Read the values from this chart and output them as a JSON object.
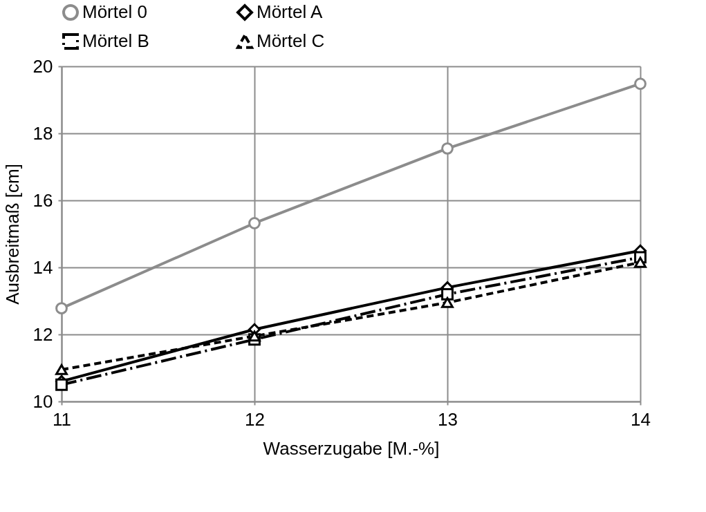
{
  "chart_data": {
    "type": "line",
    "xlabel": "Wasserzugabe [M.-%]",
    "ylabel": "Ausbreitmaß [cm]",
    "x": [
      11,
      12,
      13,
      14
    ],
    "xlim": [
      11,
      14
    ],
    "xticks": [
      11,
      12,
      13,
      14
    ],
    "ylim": [
      10,
      20
    ],
    "yticks": [
      10,
      12,
      14,
      16,
      18,
      20
    ],
    "grid": true,
    "legend": "top",
    "series": [
      {
        "name": "Mörtel 0",
        "color": "#8c8c8c",
        "marker": "circle",
        "line_style": "solid",
        "values": [
          12.78,
          15.32,
          17.55,
          19.48
        ]
      },
      {
        "name": "Mörtel A",
        "color": "#000000",
        "marker": "diamond",
        "line_style": "solid",
        "values": [
          10.6,
          12.15,
          13.4,
          14.5
        ]
      },
      {
        "name": "Mörtel B",
        "color": "#000000",
        "marker": "square",
        "line_style": "dashdot",
        "values": [
          10.5,
          11.85,
          13.2,
          14.3
        ]
      },
      {
        "name": "Mörtel C",
        "color": "#000000",
        "marker": "triangle",
        "line_style": "dashed",
        "values": [
          10.95,
          11.95,
          12.95,
          14.15
        ]
      }
    ]
  }
}
